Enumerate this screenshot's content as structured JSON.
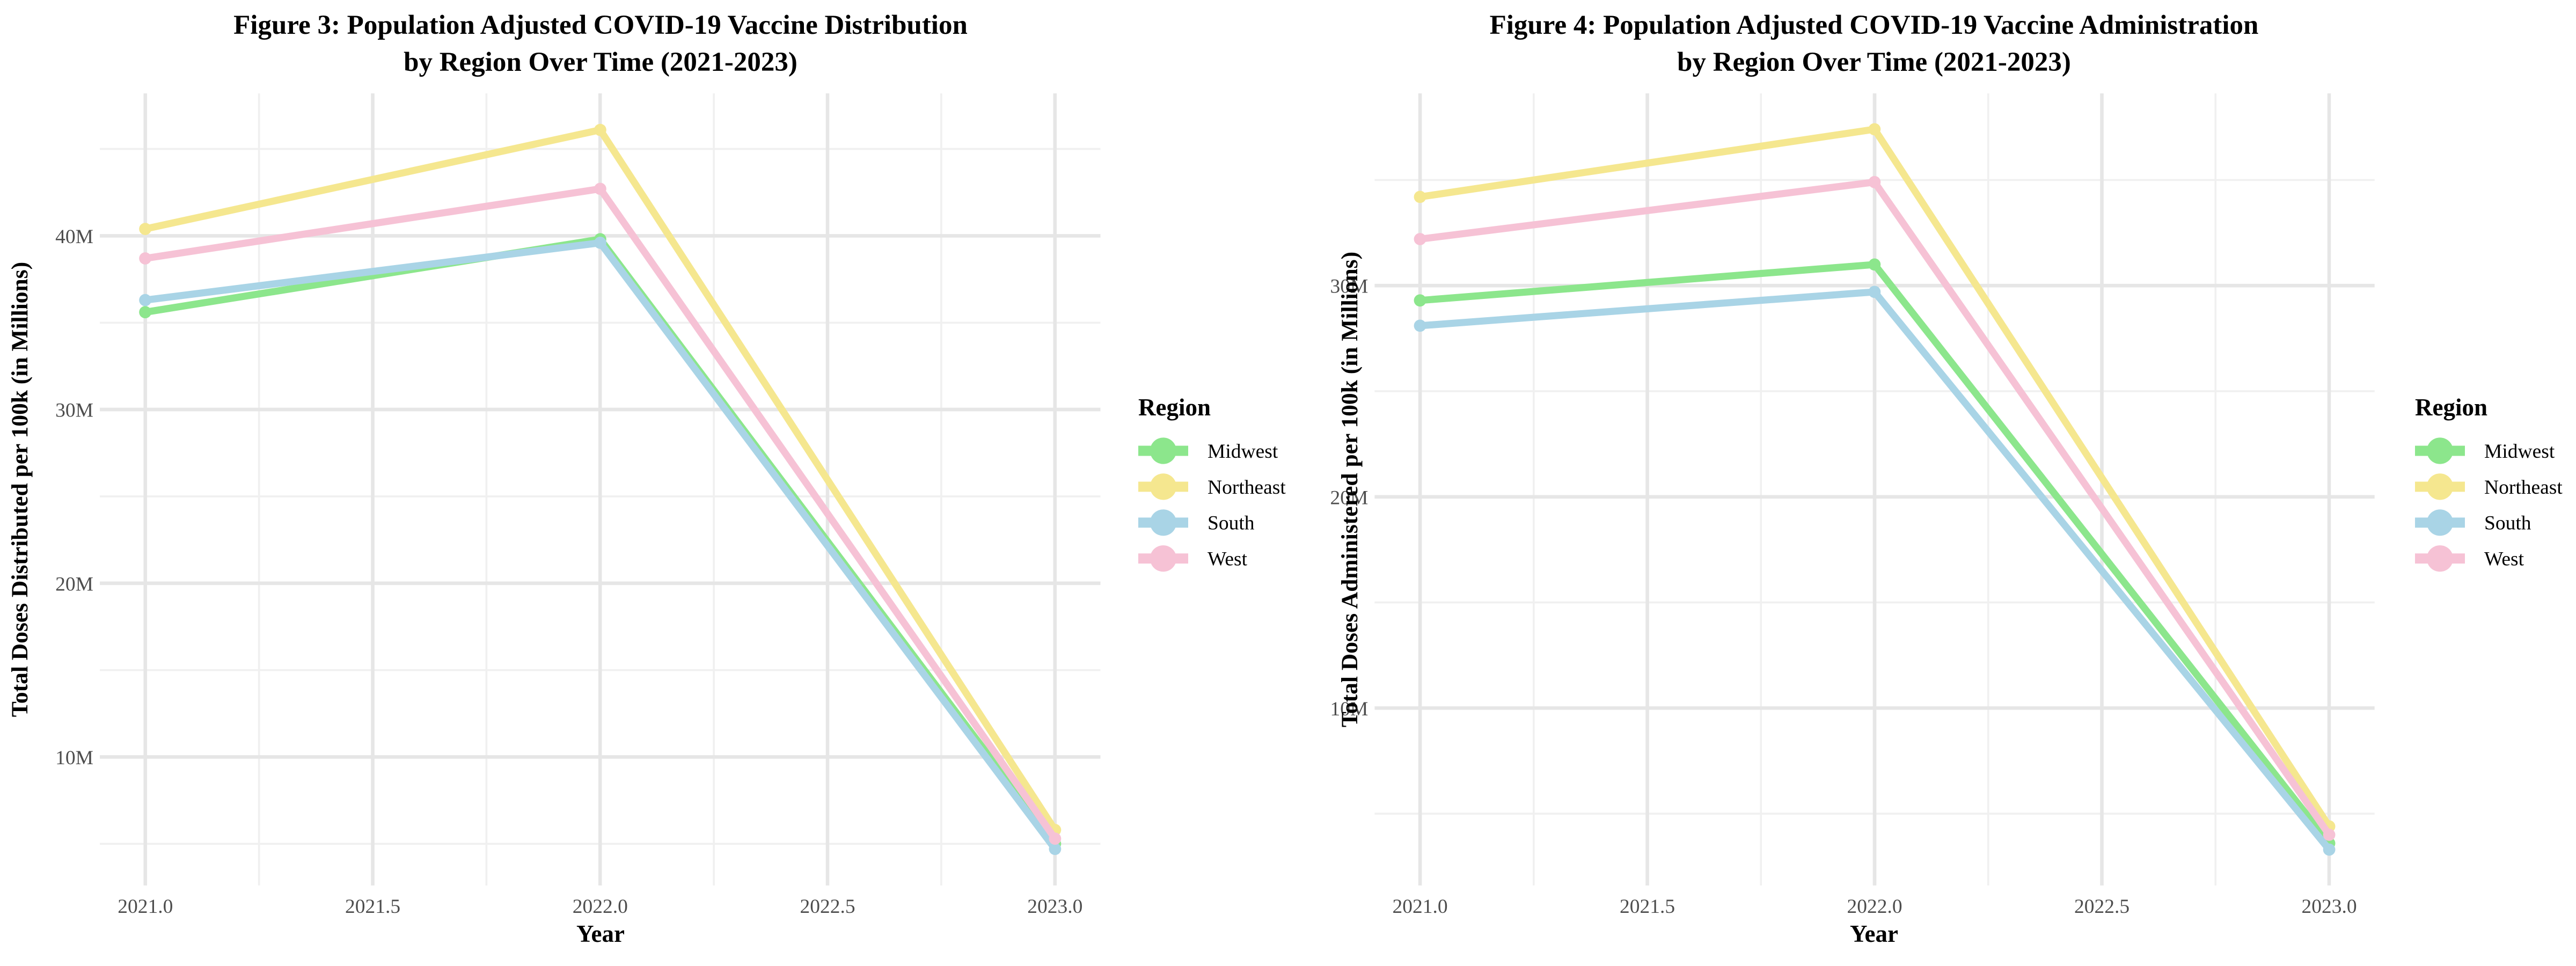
{
  "figure": {
    "background_color": "#ffffff",
    "major_grid_color": "#e6e6e6",
    "minor_grid_color": "#f0f0f0",
    "tick_text_color": "#4d4d4d"
  },
  "chart_data": [
    {
      "type": "line",
      "title_line1": "Figure 3: Population Adjusted COVID-19 Vaccine Distribution",
      "title_line2": "by Region Over Time (2021-2023)",
      "xlabel": "Year",
      "ylabel": "Total Doses Distributed per 100k (in Millions)",
      "legend_title": "Region",
      "legend_position": "right",
      "grid": true,
      "x": [
        2021,
        2022,
        2023
      ],
      "xlim": [
        2020.9,
        2023.1
      ],
      "ylim": [
        2.6,
        48.2
      ],
      "x_tick_values": [
        2021.0,
        2021.5,
        2022.0,
        2022.5,
        2023.0
      ],
      "x_tick_labels": [
        "2021.0",
        "2021.5",
        "2022.0",
        "2022.5",
        "2023.0"
      ],
      "x_minor_values": [
        2021.25,
        2021.75,
        2022.25,
        2022.75
      ],
      "y_tick_values": [
        10,
        20,
        30,
        40
      ],
      "y_tick_labels": [
        "10M",
        "20M",
        "30M",
        "40M"
      ],
      "y_minor_values": [
        5,
        15,
        25,
        35,
        45
      ],
      "y_unit": "M = millions of doses per 100k",
      "series": [
        {
          "name": "Midwest",
          "color": "#8ce68c",
          "values": [
            35.6,
            39.8,
            5.0
          ]
        },
        {
          "name": "Northeast",
          "color": "#f5e78f",
          "values": [
            40.4,
            46.1,
            5.8
          ]
        },
        {
          "name": "South",
          "color": "#a9d4e6",
          "values": [
            36.3,
            39.6,
            4.7
          ]
        },
        {
          "name": "West",
          "color": "#f6c2d5",
          "values": [
            38.7,
            42.7,
            5.3
          ]
        }
      ]
    },
    {
      "type": "line",
      "title_line1": "Figure 4: Population Adjusted COVID-19 Vaccine Administration",
      "title_line2": "by Region Over Time (2021-2023)",
      "xlabel": "Year",
      "ylabel": "Total Doses Administered per 100k (in Millions)",
      "legend_title": "Region",
      "legend_position": "right",
      "grid": true,
      "x": [
        2021,
        2022,
        2023
      ],
      "xlim": [
        2020.9,
        2023.1
      ],
      "ylim": [
        1.6,
        39.1
      ],
      "x_tick_values": [
        2021.0,
        2021.5,
        2022.0,
        2022.5,
        2023.0
      ],
      "x_tick_labels": [
        "2021.0",
        "2021.5",
        "2022.0",
        "2022.5",
        "2023.0"
      ],
      "x_minor_values": [
        2021.25,
        2021.75,
        2022.25,
        2022.75
      ],
      "y_tick_values": [
        10,
        20,
        30
      ],
      "y_tick_labels": [
        "10M",
        "20M",
        "30M"
      ],
      "y_minor_values": [
        5,
        15,
        25,
        35
      ],
      "y_unit": "M = millions of doses per 100k",
      "series": [
        {
          "name": "Midwest",
          "color": "#8ce68c",
          "values": [
            29.3,
            31.0,
            3.6
          ]
        },
        {
          "name": "Northeast",
          "color": "#f5e78f",
          "values": [
            34.2,
            37.4,
            4.4
          ]
        },
        {
          "name": "South",
          "color": "#a9d4e6",
          "values": [
            28.1,
            29.7,
            3.3
          ]
        },
        {
          "name": "West",
          "color": "#f6c2d5",
          "values": [
            32.2,
            34.9,
            4.0
          ]
        }
      ]
    }
  ]
}
